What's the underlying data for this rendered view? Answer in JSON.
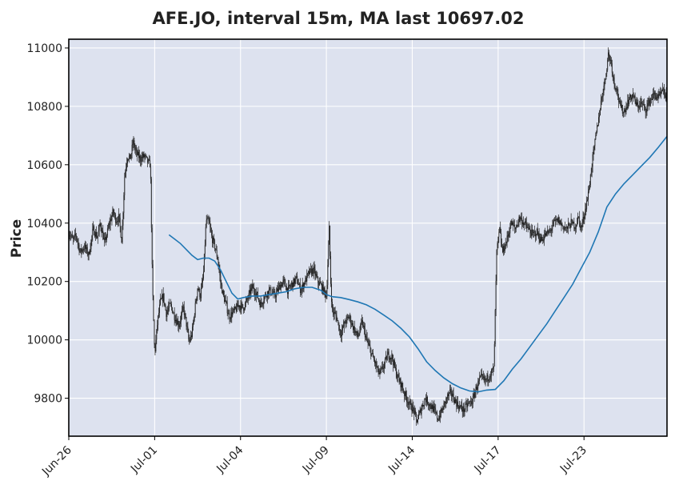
{
  "chart_data": {
    "type": "candlestick",
    "title": "AFE.JO, interval 15m, MA last 10697.02",
    "ylabel": "Price",
    "xlabel": "",
    "ylim": [
      9670,
      11030
    ],
    "yticks": [
      9800,
      10000,
      10200,
      10400,
      10600,
      10800,
      11000
    ],
    "xticks": [
      {
        "label": "Jun-26",
        "x": 0
      },
      {
        "label": "Jul-01",
        "x": 3
      },
      {
        "label": "Jul-04",
        "x": 6
      },
      {
        "label": "Jul-09",
        "x": 9
      },
      {
        "label": "Jul-14",
        "x": 12
      },
      {
        "label": "Jul-17",
        "x": 15
      },
      {
        "label": "Jul-23",
        "x": 18
      }
    ],
    "xlim": [
      0,
      20.9
    ],
    "grid": true,
    "colors": {
      "background": "#dde2ef",
      "grid": "#ffffff",
      "candles": "#1f1f1f",
      "ma_line": "#1f77b4"
    },
    "price_path": [
      [
        0.0,
        10370
      ],
      [
        0.15,
        10340
      ],
      [
        0.25,
        10360
      ],
      [
        0.4,
        10300
      ],
      [
        0.55,
        10320
      ],
      [
        0.7,
        10290
      ],
      [
        0.85,
        10380
      ],
      [
        1.0,
        10350
      ],
      [
        1.1,
        10400
      ],
      [
        1.25,
        10330
      ],
      [
        1.4,
        10390
      ],
      [
        1.55,
        10440
      ],
      [
        1.65,
        10410
      ],
      [
        1.75,
        10420
      ],
      [
        1.85,
        10340
      ],
      [
        1.95,
        10560
      ],
      [
        2.05,
        10630
      ],
      [
        2.15,
        10620
      ],
      [
        2.25,
        10680
      ],
      [
        2.35,
        10640
      ],
      [
        2.5,
        10620
      ],
      [
        2.65,
        10630
      ],
      [
        2.75,
        10610
      ],
      [
        2.85,
        10600
      ],
      [
        2.92,
        10200
      ],
      [
        3.0,
        9950
      ],
      [
        3.1,
        10060
      ],
      [
        3.2,
        10130
      ],
      [
        3.3,
        10150
      ],
      [
        3.4,
        10090
      ],
      [
        3.55,
        10120
      ],
      [
        3.7,
        10080
      ],
      [
        3.85,
        10050
      ],
      [
        4.0,
        10110
      ],
      [
        4.1,
        10060
      ],
      [
        4.2,
        9990
      ],
      [
        4.3,
        10020
      ],
      [
        4.4,
        10100
      ],
      [
        4.5,
        10180
      ],
      [
        4.6,
        10150
      ],
      [
        4.7,
        10220
      ],
      [
        4.8,
        10410
      ],
      [
        4.9,
        10400
      ],
      [
        5.0,
        10350
      ],
      [
        5.1,
        10320
      ],
      [
        5.2,
        10280
      ],
      [
        5.3,
        10200
      ],
      [
        5.4,
        10150
      ],
      [
        5.5,
        10120
      ],
      [
        5.6,
        10080
      ],
      [
        5.7,
        10090
      ],
      [
        5.8,
        10100
      ],
      [
        5.95,
        10120
      ],
      [
        6.1,
        10110
      ],
      [
        6.25,
        10140
      ],
      [
        6.4,
        10180
      ],
      [
        6.55,
        10160
      ],
      [
        6.7,
        10120
      ],
      [
        6.85,
        10150
      ],
      [
        7.0,
        10170
      ],
      [
        7.2,
        10150
      ],
      [
        7.35,
        10180
      ],
      [
        7.5,
        10200
      ],
      [
        7.65,
        10170
      ],
      [
        7.8,
        10190
      ],
      [
        7.95,
        10210
      ],
      [
        8.1,
        10170
      ],
      [
        8.25,
        10200
      ],
      [
        8.4,
        10230
      ],
      [
        8.55,
        10240
      ],
      [
        8.7,
        10200
      ],
      [
        8.85,
        10180
      ],
      [
        9.0,
        10150
      ],
      [
        9.1,
        10380
      ],
      [
        9.15,
        10200
      ],
      [
        9.2,
        10100
      ],
      [
        9.35,
        10080
      ],
      [
        9.5,
        10020
      ],
      [
        9.65,
        10060
      ],
      [
        9.8,
        10080
      ],
      [
        9.95,
        10040
      ],
      [
        10.1,
        10010
      ],
      [
        10.25,
        10060
      ],
      [
        10.4,
        10000
      ],
      [
        10.55,
        9960
      ],
      [
        10.7,
        9920
      ],
      [
        10.85,
        9880
      ],
      [
        11.0,
        9910
      ],
      [
        11.15,
        9950
      ],
      [
        11.3,
        9940
      ],
      [
        11.45,
        9880
      ],
      [
        11.6,
        9850
      ],
      [
        11.75,
        9810
      ],
      [
        11.9,
        9780
      ],
      [
        12.05,
        9760
      ],
      [
        12.15,
        9720
      ],
      [
        12.3,
        9760
      ],
      [
        12.45,
        9800
      ],
      [
        12.6,
        9780
      ],
      [
        12.75,
        9760
      ],
      [
        12.9,
        9730
      ],
      [
        13.05,
        9760
      ],
      [
        13.2,
        9800
      ],
      [
        13.35,
        9820
      ],
      [
        13.5,
        9790
      ],
      [
        13.65,
        9770
      ],
      [
        13.8,
        9760
      ],
      [
        13.95,
        9780
      ],
      [
        14.1,
        9790
      ],
      [
        14.25,
        9840
      ],
      [
        14.4,
        9870
      ],
      [
        14.55,
        9860
      ],
      [
        14.7,
        9880
      ],
      [
        14.85,
        9900
      ],
      [
        14.95,
        10300
      ],
      [
        15.05,
        10380
      ],
      [
        15.15,
        10300
      ],
      [
        15.3,
        10340
      ],
      [
        15.45,
        10400
      ],
      [
        15.6,
        10380
      ],
      [
        15.75,
        10420
      ],
      [
        15.9,
        10400
      ],
      [
        16.05,
        10380
      ],
      [
        16.2,
        10360
      ],
      [
        16.35,
        10370
      ],
      [
        16.5,
        10340
      ],
      [
        16.65,
        10360
      ],
      [
        16.8,
        10370
      ],
      [
        16.95,
        10400
      ],
      [
        17.1,
        10410
      ],
      [
        17.25,
        10390
      ],
      [
        17.4,
        10380
      ],
      [
        17.55,
        10400
      ],
      [
        17.7,
        10390
      ],
      [
        17.8,
        10420
      ],
      [
        17.9,
        10380
      ],
      [
        18.05,
        10450
      ],
      [
        18.15,
        10500
      ],
      [
        18.3,
        10620
      ],
      [
        18.45,
        10720
      ],
      [
        18.6,
        10820
      ],
      [
        18.75,
        10900
      ],
      [
        18.85,
        10980
      ],
      [
        18.95,
        10950
      ],
      [
        19.05,
        10880
      ],
      [
        19.15,
        10860
      ],
      [
        19.25,
        10800
      ],
      [
        19.4,
        10780
      ],
      [
        19.55,
        10820
      ],
      [
        19.7,
        10840
      ],
      [
        19.85,
        10800
      ],
      [
        20.0,
        10810
      ],
      [
        20.15,
        10790
      ],
      [
        20.3,
        10820
      ],
      [
        20.45,
        10840
      ],
      [
        20.6,
        10830
      ],
      [
        20.75,
        10850
      ],
      [
        20.9,
        10830
      ]
    ],
    "series": [
      {
        "values": [
          [
            3.5,
            10360
          ],
          [
            3.7,
            10345
          ],
          [
            3.9,
            10330
          ],
          [
            4.1,
            10310
          ],
          [
            4.3,
            10290
          ],
          [
            4.5,
            10275
          ],
          [
            4.7,
            10280
          ],
          [
            4.9,
            10280
          ],
          [
            5.1,
            10270
          ],
          [
            5.3,
            10240
          ],
          [
            5.5,
            10200
          ],
          [
            5.7,
            10160
          ],
          [
            5.9,
            10140
          ],
          [
            6.1,
            10145
          ],
          [
            6.4,
            10150
          ],
          [
            6.7,
            10150
          ],
          [
            7.0,
            10155
          ],
          [
            7.3,
            10160
          ],
          [
            7.6,
            10165
          ],
          [
            7.9,
            10175
          ],
          [
            8.2,
            10180
          ],
          [
            8.5,
            10180
          ],
          [
            8.8,
            10170
          ],
          [
            9.0,
            10155
          ],
          [
            9.2,
            10148
          ],
          [
            9.5,
            10145
          ],
          [
            9.8,
            10138
          ],
          [
            10.1,
            10130
          ],
          [
            10.4,
            10120
          ],
          [
            10.7,
            10105
          ],
          [
            11.0,
            10085
          ],
          [
            11.3,
            10065
          ],
          [
            11.6,
            10040
          ],
          [
            11.9,
            10010
          ],
          [
            12.2,
            9970
          ],
          [
            12.5,
            9925
          ],
          [
            12.8,
            9895
          ],
          [
            13.1,
            9870
          ],
          [
            13.4,
            9850
          ],
          [
            13.7,
            9835
          ],
          [
            14.0,
            9825
          ],
          [
            14.3,
            9822
          ],
          [
            14.6,
            9828
          ],
          [
            14.9,
            9830
          ],
          [
            15.2,
            9860
          ],
          [
            15.5,
            9900
          ],
          [
            15.8,
            9935
          ],
          [
            16.1,
            9975
          ],
          [
            16.4,
            10015
          ],
          [
            16.7,
            10055
          ],
          [
            17.0,
            10100
          ],
          [
            17.3,
            10145
          ],
          [
            17.6,
            10190
          ],
          [
            17.9,
            10245
          ],
          [
            18.2,
            10300
          ],
          [
            18.5,
            10370
          ],
          [
            18.8,
            10455
          ],
          [
            19.1,
            10500
          ],
          [
            19.4,
            10535
          ],
          [
            19.7,
            10565
          ],
          [
            20.0,
            10595
          ],
          [
            20.3,
            10625
          ],
          [
            20.6,
            10660
          ],
          [
            20.9,
            10697
          ]
        ]
      }
    ]
  }
}
